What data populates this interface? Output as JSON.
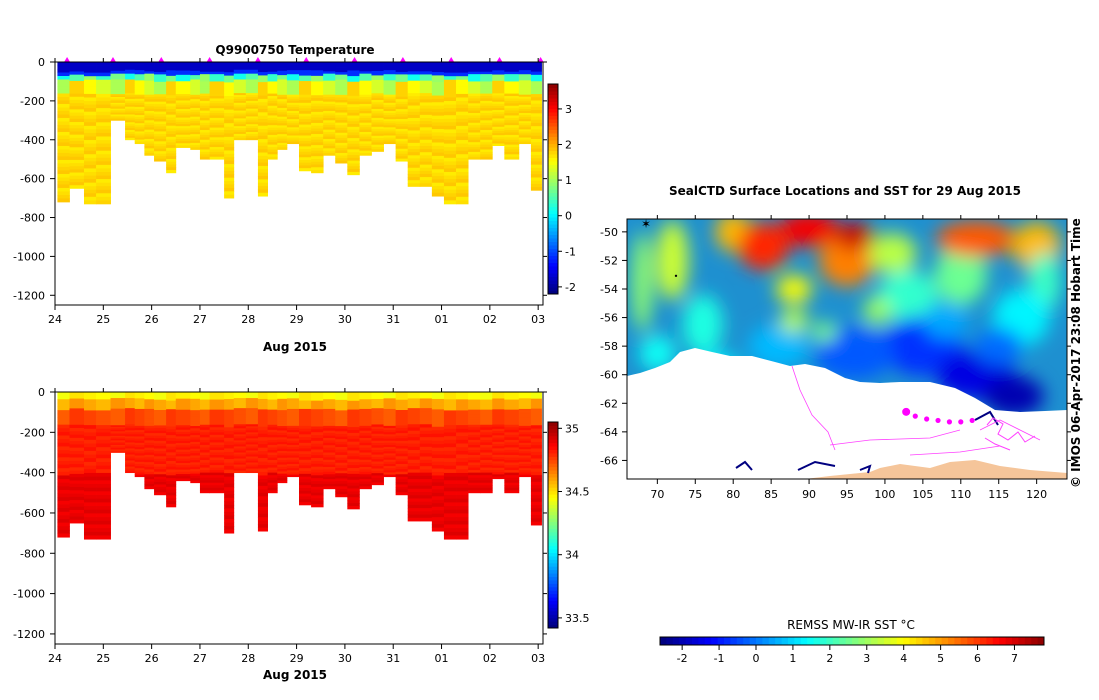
{
  "chart_data": [
    {
      "type": "heatmap",
      "panel": "temperature-profile",
      "title": "Q9900750  Temperature",
      "xlabel": "Aug 2015",
      "ylabel": "",
      "x_ticks": [
        "24",
        "25",
        "26",
        "27",
        "28",
        "29",
        "30",
        "31",
        "01",
        "02",
        "03"
      ],
      "x_range_days": [
        24.0,
        34.1
      ],
      "ylim": [
        -1250,
        0
      ],
      "y_ticks": [
        0,
        -200,
        -400,
        -600,
        -800,
        -1000,
        -1200
      ],
      "profile_days": [
        24.25,
        25.2,
        26.2,
        27.2,
        28.2,
        29.2,
        30.2,
        31.2,
        32.2,
        33.2,
        34.05
      ],
      "profile_starts": [
        24.05,
        24.3,
        24.6,
        24.85,
        25.15,
        25.45,
        25.65,
        25.85,
        26.05,
        26.3,
        26.5,
        26.8,
        27.0,
        27.2,
        27.5,
        27.7,
        27.95,
        28.2,
        28.4,
        28.6,
        28.8,
        29.05,
        29.3,
        29.55,
        29.8,
        30.05,
        30.3,
        30.55,
        30.8,
        31.05,
        31.3,
        31.55,
        31.8,
        32.05,
        32.3,
        32.55,
        32.8,
        33.05,
        33.3,
        33.6,
        33.85
      ],
      "profile_max_depth": [
        -720,
        -650,
        -730,
        -730,
        -300,
        -400,
        -420,
        -480,
        -510,
        -570,
        -440,
        -450,
        -500,
        -500,
        -700,
        -400,
        -400,
        -690,
        -500,
        -450,
        -420,
        -560,
        -570,
        -480,
        -520,
        -580,
        -480,
        -460,
        -420,
        -510,
        -640,
        -640,
        -690,
        -730,
        -730,
        -500,
        -500,
        -430,
        -500,
        -420,
        -660
      ],
      "colorbar": {
        "min": -2.2,
        "max": 3.7,
        "ticks": [
          3,
          2,
          1,
          0,
          -1,
          -2
        ],
        "colormap": "jet"
      }
    },
    {
      "type": "heatmap",
      "panel": "salinity-profile",
      "title": "",
      "xlabel": "Aug 2015",
      "ylabel": "",
      "x_ticks": [
        "24",
        "25",
        "26",
        "27",
        "28",
        "29",
        "30",
        "31",
        "01",
        "02",
        "03"
      ],
      "x_range_days": [
        24.0,
        34.1
      ],
      "ylim": [
        -1250,
        0
      ],
      "y_ticks": [
        0,
        -200,
        -400,
        -600,
        -800,
        -1000,
        -1200
      ],
      "colorbar": {
        "min": 33.42,
        "max": 35.05,
        "ticks": [
          "35",
          "34.5",
          "34",
          "33.5"
        ],
        "values": [
          35,
          34.5,
          34,
          33.5
        ],
        "colormap": "jet"
      }
    },
    {
      "type": "heatmap",
      "panel": "sst-map",
      "title": "SealCTD Surface Locations and SST for 29 Aug 2015",
      "xlabel": "",
      "ylabel": "",
      "xlim": [
        66,
        124
      ],
      "ylim": [
        -67.3,
        -49.1
      ],
      "x_ticks": [
        70,
        75,
        80,
        85,
        90,
        95,
        100,
        105,
        110,
        115,
        120
      ],
      "y_ticks": [
        -50,
        -52,
        -54,
        -56,
        -58,
        -60,
        -62,
        -64,
        -66
      ],
      "y_tick_labels": [
        "-50",
        "-52",
        "-54",
        "-56",
        "-58",
        "-60",
        "-62",
        "-64",
        "-66"
      ],
      "track": [
        [
          102.8,
          -62.6
        ],
        [
          104,
          -62.9
        ],
        [
          105.5,
          -63.1
        ],
        [
          107,
          -63.2
        ],
        [
          108.5,
          -63.3
        ],
        [
          110,
          -63.3
        ],
        [
          111.5,
          -63.2
        ]
      ],
      "colorbar": {
        "label": "REMSS MW-IR SST °C",
        "min": -2.6,
        "max": 7.8,
        "ticks": [
          -2,
          -1,
          0,
          1,
          2,
          3,
          4,
          5,
          6,
          7
        ],
        "colormap": "jet"
      }
    }
  ],
  "credit": "© IMOS 06-Apr-2017 23:08 Hobart Time",
  "colors": {
    "land": "#ffffff",
    "ice_shelf": "#f5c59a",
    "track": "#ff00ff",
    "axis": "#000000"
  }
}
